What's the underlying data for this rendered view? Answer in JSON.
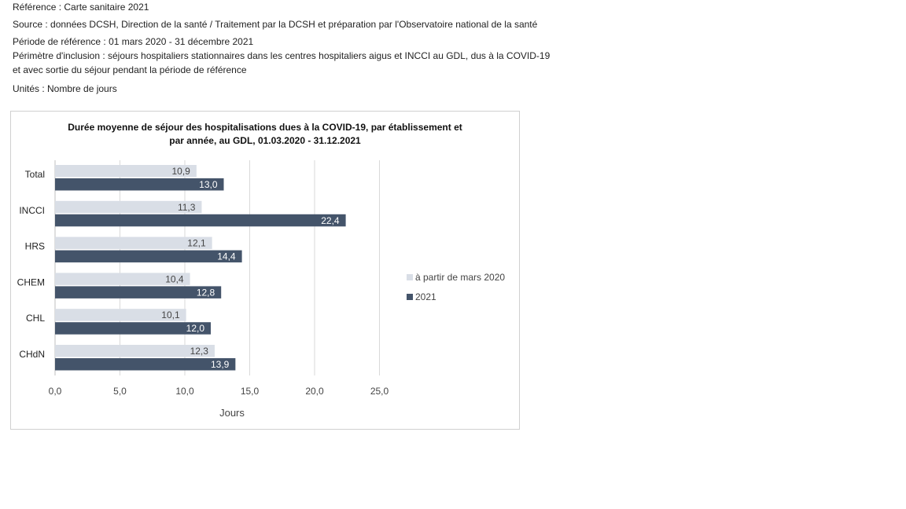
{
  "header": {
    "reference": "Référence : Carte sanitaire 2021",
    "source": "Source : données DCSH, Direction de la santé / Traitement par la DCSH et préparation par l'Observatoire national de la santé",
    "period": "Période de référence : 01 mars 2020 - 31 décembre 2021",
    "scope_line1": "Périmètre d'inclusion : séjours hospitaliers stationnaires dans les centres hospitaliers aigus et INCCI au GDL, dus à la COVID-19",
    "scope_line2": "et avec sortie du séjour pendant la période de référence",
    "units": "Unités : Nombre de jours"
  },
  "chart_data": {
    "type": "bar",
    "orientation": "horizontal",
    "title_line1": "Durée moyenne de séjour des hospitalisations dues à la COVID-19, par établissement et",
    "title_line2": "par année, au GDL, 01.03.2020 - 31.12.2021",
    "categories": [
      "Total",
      "INCCI",
      "HRS",
      "CHEM",
      "CHL",
      "CHdN"
    ],
    "series": [
      {
        "name": "à partir de mars 2020",
        "color": "#d9dee6",
        "values": [
          10.9,
          11.3,
          12.1,
          10.4,
          10.1,
          12.3
        ],
        "labels": [
          "10,9",
          "11,3",
          "12,1",
          "10,4",
          "10,1",
          "12,3"
        ]
      },
      {
        "name": "2021",
        "color": "#44546a",
        "values": [
          13.0,
          22.4,
          14.4,
          12.8,
          12.0,
          13.9
        ],
        "labels": [
          "13,0",
          "22,4",
          "14,4",
          "12,8",
          "12,0",
          "13,9"
        ]
      }
    ],
    "xlim": [
      0,
      25
    ],
    "xticks": [
      0,
      5,
      10,
      15,
      20,
      25
    ],
    "xtick_labels": [
      "0,0",
      "5,0",
      "10,0",
      "15,0",
      "20,0",
      "25,0"
    ],
    "xlabel": "Jours",
    "ylabel": "",
    "grid": true,
    "legend_position": "right"
  }
}
